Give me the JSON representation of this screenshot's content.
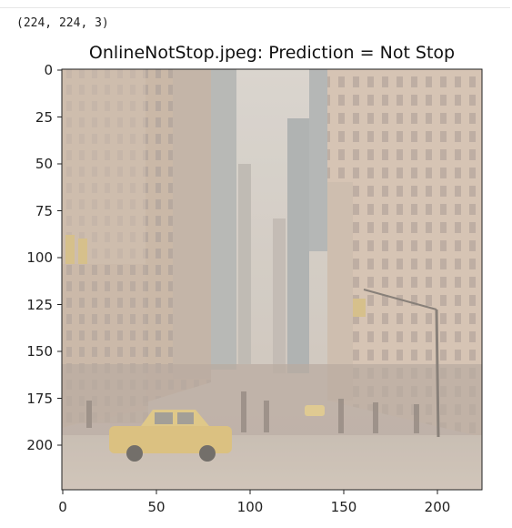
{
  "output": {
    "stdout": "(224, 224, 3)"
  },
  "figure": {
    "title": "OnlineNotStop.jpeg: Prediction = Not Stop",
    "image_description_icon": "street-photo-icon",
    "x_ticks": [
      "0",
      "50",
      "100",
      "150",
      "200"
    ],
    "y_ticks": [
      "0",
      "25",
      "50",
      "75",
      "100",
      "125",
      "150",
      "175",
      "200"
    ],
    "colors": {
      "sky": "#c9c3bb",
      "building_light": "#cdb9a6",
      "building_dark": "#a8958a",
      "taxi": "#d6b96a",
      "road": "#b7aa9e"
    }
  }
}
